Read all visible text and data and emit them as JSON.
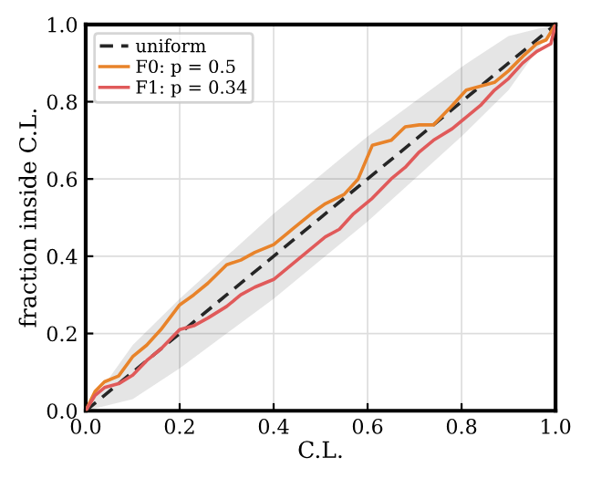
{
  "chart_data": {
    "type": "line",
    "xlabel": "C.L.",
    "ylabel": "fraction inside C.L.",
    "xlim": [
      0,
      1
    ],
    "ylim": [
      0,
      1
    ],
    "xticks": [
      {
        "value": 0,
        "label": "0.0"
      },
      {
        "value": 0.2,
        "label": "0.2"
      },
      {
        "value": 0.4,
        "label": "0.4"
      },
      {
        "value": 0.6,
        "label": "0.6"
      },
      {
        "value": 0.8,
        "label": "0.8"
      },
      {
        "value": 1,
        "label": "1.0"
      }
    ],
    "yticks": [
      {
        "value": 0,
        "label": "0.0"
      },
      {
        "value": 0.2,
        "label": "0.2"
      },
      {
        "value": 0.4,
        "label": "0.4"
      },
      {
        "value": 0.6,
        "label": "0.6"
      },
      {
        "value": 0.8,
        "label": "0.8"
      },
      {
        "value": 1,
        "label": "1.0"
      }
    ],
    "grid": true,
    "legend": "top left",
    "series": [
      {
        "name": "uniform",
        "line_style": "dashed",
        "color": "#262626",
        "x": [
          0,
          0.1,
          0.2,
          0.3,
          0.4,
          0.5,
          0.6,
          0.7,
          0.8,
          0.9,
          1
        ],
        "values": [
          0,
          0.1,
          0.2,
          0.3,
          0.4,
          0.5,
          0.6,
          0.7,
          0.8,
          0.9,
          1
        ],
        "upper": [
          0,
          0.17,
          0.29,
          0.4,
          0.51,
          0.61,
          0.71,
          0.8,
          0.89,
          0.97,
          1
        ],
        "lower": [
          0,
          0.03,
          0.11,
          0.2,
          0.29,
          0.39,
          0.49,
          0.6,
          0.71,
          0.83,
          1
        ]
      },
      {
        "name": "F0: p = 0.5",
        "line_style": "solid",
        "color": "#e8832a",
        "x": [
          0,
          0.02,
          0.04,
          0.07,
          0.1,
          0.13,
          0.16,
          0.2,
          0.23,
          0.26,
          0.3,
          0.33,
          0.36,
          0.4,
          0.44,
          0.48,
          0.51,
          0.55,
          0.58,
          0.61,
          0.65,
          0.68,
          0.71,
          0.74,
          0.78,
          0.81,
          0.84,
          0.87,
          0.9,
          0.93,
          0.96,
          0.98,
          1
        ],
        "values": [
          0,
          0.05,
          0.075,
          0.09,
          0.14,
          0.17,
          0.21,
          0.274,
          0.3,
          0.33,
          0.378,
          0.39,
          0.41,
          0.43,
          0.47,
          0.51,
          0.536,
          0.56,
          0.6,
          0.687,
          0.7,
          0.735,
          0.74,
          0.74,
          0.79,
          0.83,
          0.84,
          0.85,
          0.88,
          0.917,
          0.95,
          0.96,
          1
        ]
      },
      {
        "name": "F1: p = 0.34",
        "line_style": "solid",
        "color": "#e05a5a",
        "x": [
          0,
          0.02,
          0.04,
          0.07,
          0.1,
          0.13,
          0.16,
          0.2,
          0.23,
          0.26,
          0.3,
          0.33,
          0.36,
          0.4,
          0.44,
          0.48,
          0.51,
          0.54,
          0.57,
          0.61,
          0.65,
          0.68,
          0.71,
          0.74,
          0.78,
          0.81,
          0.84,
          0.87,
          0.9,
          0.93,
          0.96,
          0.99,
          1
        ],
        "values": [
          0,
          0.04,
          0.06,
          0.07,
          0.092,
          0.13,
          0.16,
          0.21,
          0.22,
          0.24,
          0.27,
          0.3,
          0.32,
          0.34,
          0.38,
          0.42,
          0.45,
          0.47,
          0.51,
          0.55,
          0.6,
          0.63,
          0.67,
          0.7,
          0.73,
          0.76,
          0.79,
          0.83,
          0.86,
          0.9,
          0.93,
          0.95,
          1
        ]
      }
    ]
  }
}
